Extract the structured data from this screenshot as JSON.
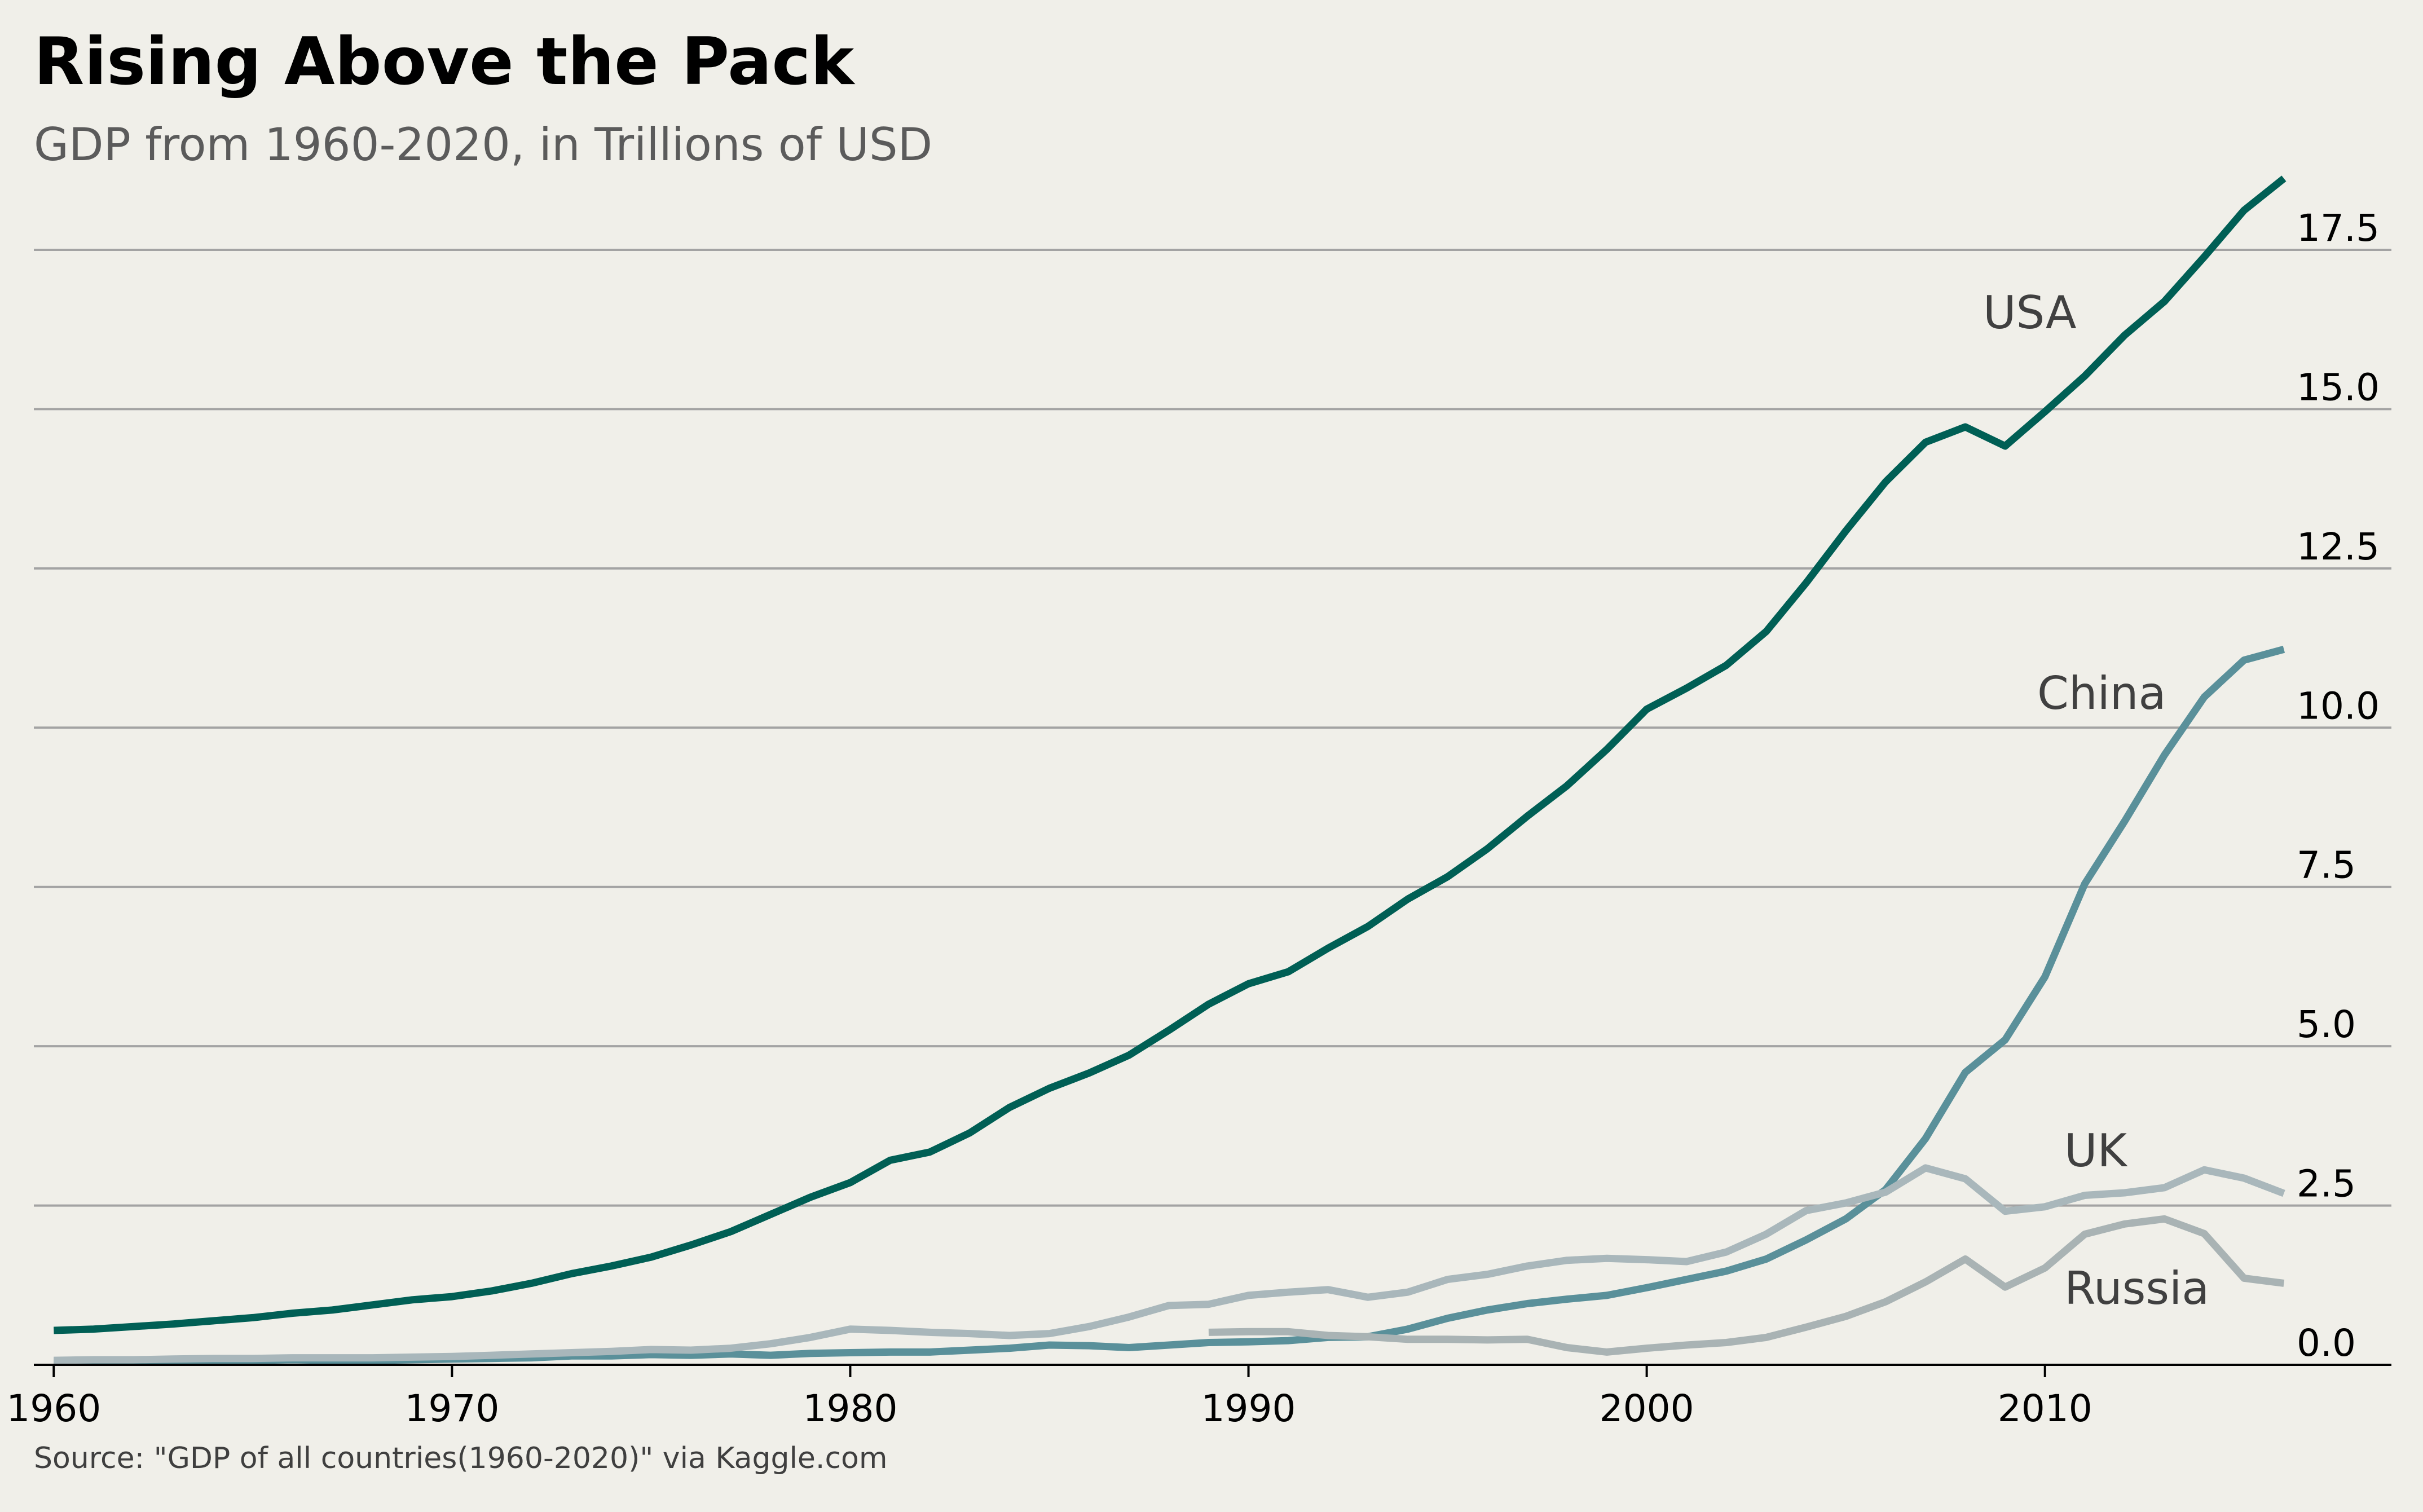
{
  "title": "Rising Above the Pack",
  "subtitle": "GDP from 1960-2020, in Trillions of USD",
  "source": "Source: \"GDP of all countries(1960-2020)\" via Kaggle.com",
  "chart_data": {
    "type": "line",
    "ylim": [
      0,
      18.5
    ],
    "xlim": [
      1959.5,
      2018.7
    ],
    "grid": "horizontal",
    "y_ticks": [
      "0.0",
      "2.5",
      "5.0",
      "7.5",
      "10.0",
      "12.5",
      "15.0",
      "17.5"
    ],
    "x_ticks": [
      "1960",
      "1970",
      "1980",
      "1990",
      "2000",
      "2010"
    ],
    "series": [
      {
        "name": "USA",
        "color": "#005f55",
        "start_year": 1960,
        "values": [
          0.54,
          0.56,
          0.6,
          0.64,
          0.69,
          0.74,
          0.81,
          0.86,
          0.94,
          1.02,
          1.07,
          1.16,
          1.28,
          1.43,
          1.55,
          1.69,
          1.88,
          2.09,
          2.36,
          2.63,
          2.86,
          3.21,
          3.34,
          3.64,
          4.04,
          4.34,
          4.58,
          4.86,
          5.25,
          5.66,
          5.98,
          6.17,
          6.54,
          6.88,
          7.31,
          7.66,
          8.1,
          8.61,
          9.09,
          9.66,
          10.29,
          10.62,
          10.98,
          11.51,
          12.27,
          13.09,
          13.86,
          14.48,
          14.72,
          14.42,
          14.96,
          15.52,
          16.16,
          16.69,
          17.39,
          18.12,
          18.62
        ]
      },
      {
        "name": "China",
        "color": "#5a909a",
        "start_year": 1960,
        "values": [
          0.06,
          0.05,
          0.05,
          0.05,
          0.06,
          0.07,
          0.08,
          0.07,
          0.07,
          0.08,
          0.09,
          0.1,
          0.11,
          0.14,
          0.14,
          0.16,
          0.15,
          0.17,
          0.15,
          0.18,
          0.19,
          0.2,
          0.2,
          0.23,
          0.26,
          0.31,
          0.3,
          0.27,
          0.31,
          0.35,
          0.36,
          0.38,
          0.43,
          0.44,
          0.56,
          0.73,
          0.86,
          0.96,
          1.03,
          1.09,
          1.21,
          1.34,
          1.47,
          1.66,
          1.96,
          2.29,
          2.75,
          3.55,
          4.59,
          5.1,
          6.09,
          7.55,
          8.53,
          9.57,
          10.48,
          11.06,
          11.23
        ]
      },
      {
        "name": "UK",
        "color": "#a9b7bb",
        "start_year": 1960,
        "values": [
          0.07,
          0.08,
          0.08,
          0.09,
          0.1,
          0.1,
          0.11,
          0.11,
          0.11,
          0.12,
          0.13,
          0.15,
          0.17,
          0.19,
          0.21,
          0.24,
          0.23,
          0.26,
          0.33,
          0.43,
          0.56,
          0.54,
          0.51,
          0.49,
          0.46,
          0.49,
          0.6,
          0.75,
          0.93,
          0.95,
          1.09,
          1.14,
          1.18,
          1.06,
          1.14,
          1.34,
          1.42,
          1.55,
          1.64,
          1.67,
          1.65,
          1.62,
          1.77,
          2.05,
          2.42,
          2.54,
          2.71,
          3.09,
          2.92,
          2.41,
          2.48,
          2.66,
          2.7,
          2.78,
          3.06,
          2.93,
          2.69
        ]
      },
      {
        "name": "Russia",
        "color": "#a9b3b4",
        "start_year": 1989,
        "values": [
          0.51,
          0.52,
          0.52,
          0.46,
          0.44,
          0.4,
          0.4,
          0.39,
          0.4,
          0.27,
          0.2,
          0.26,
          0.31,
          0.35,
          0.43,
          0.59,
          0.76,
          0.99,
          1.3,
          1.66,
          1.22,
          1.52,
          2.05,
          2.21,
          2.29,
          2.06,
          1.36,
          1.28
        ]
      }
    ]
  }
}
